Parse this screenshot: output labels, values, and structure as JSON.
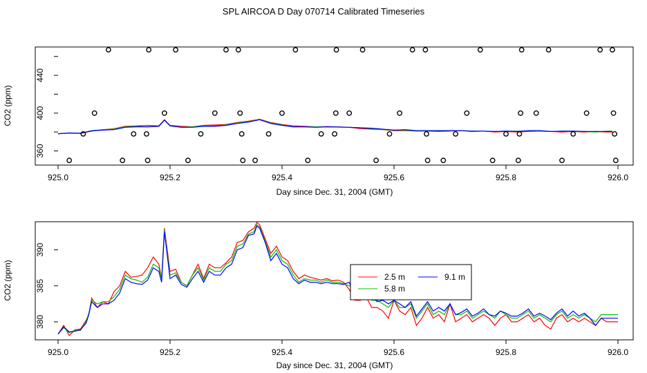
{
  "figure": {
    "title": "SPL AIRCOA D  Day 070714  Calibrated Timeseries"
  },
  "colors": {
    "series_2_5m": "#ff0000",
    "series_5_8m": "#00c000",
    "series_9_1m": "#0000ff",
    "outlier_points": "#000000"
  },
  "chart_data": [
    {
      "type": "line",
      "panel": "top",
      "title": "",
      "xlabel": "Day since Dec. 31, 2004 (GMT)",
      "ylabel": "CO2 (ppm)",
      "xlim": [
        925.0,
        926.0
      ],
      "ylim": [
        345,
        470
      ],
      "x_ticks": [
        "925.0",
        "925.2",
        "925.4",
        "925.6",
        "925.8",
        "926.0"
      ],
      "x_tick_values": [
        925.0,
        925.2,
        925.4,
        925.6,
        925.8,
        926.0
      ],
      "y_ticks": [
        "360",
        "400",
        "440"
      ],
      "y_tick_values": [
        360,
        400,
        440
      ],
      "grid": false,
      "x": [
        925.0,
        925.02,
        925.04,
        925.06,
        925.08,
        925.1,
        925.12,
        925.14,
        925.16,
        925.18,
        925.19,
        925.2,
        925.22,
        925.24,
        925.26,
        925.28,
        925.3,
        925.32,
        925.34,
        925.36,
        925.38,
        925.4,
        925.42,
        925.44,
        925.46,
        925.48,
        925.5,
        925.52,
        925.54,
        925.56,
        925.58,
        925.6,
        925.62,
        925.64,
        925.66,
        925.68,
        925.7,
        925.72,
        925.74,
        925.76,
        925.78,
        925.8,
        925.82,
        925.84,
        925.86,
        925.88,
        925.9,
        925.92,
        925.94,
        925.96,
        925.98,
        925.99
      ],
      "series": [
        {
          "name": "2.5 m",
          "values": [
            378.2,
            378.8,
            378.5,
            381.0,
            382.5,
            383.5,
            386.0,
            386.5,
            387.0,
            386.5,
            393.0,
            387.0,
            386.0,
            385.5,
            387.0,
            387.5,
            388.0,
            390.0,
            391.5,
            393.5,
            390.0,
            388.0,
            386.5,
            386.0,
            385.5,
            385.8,
            385.5,
            385.0,
            383.5,
            383.0,
            382.5,
            381.5,
            381.5,
            381.0,
            381.0,
            380.5,
            381.0,
            381.5,
            380.5,
            381.0,
            380.0,
            380.5,
            380.0,
            380.5,
            381.0,
            380.5,
            380.0,
            380.5,
            380.0,
            380.5,
            380.0,
            380.0
          ]
        },
        {
          "name": "5.8 m",
          "values": [
            378.2,
            379.0,
            378.8,
            381.5,
            382.5,
            383.0,
            385.5,
            386.0,
            385.5,
            386.0,
            392.5,
            386.5,
            385.0,
            385.5,
            386.5,
            386.5,
            387.5,
            389.5,
            391.0,
            393.0,
            389.5,
            387.5,
            385.5,
            385.5,
            385.5,
            385.5,
            385.3,
            385.0,
            384.5,
            383.5,
            382.5,
            382.0,
            382.0,
            381.0,
            381.5,
            381.0,
            381.5,
            381.5,
            381.0,
            381.0,
            380.5,
            381.0,
            381.0,
            381.0,
            381.5,
            380.5,
            381.0,
            381.0,
            380.5,
            380.0,
            381.0,
            381.0
          ]
        },
        {
          "name": "9.1 m",
          "values": [
            378.2,
            379.0,
            378.8,
            381.2,
            382.0,
            382.5,
            385.0,
            385.5,
            385.5,
            386.0,
            392.5,
            386.5,
            385.0,
            385.0,
            386.0,
            386.0,
            387.0,
            389.0,
            390.5,
            393.0,
            389.0,
            387.0,
            385.5,
            385.5,
            385.0,
            385.5,
            385.3,
            385.0,
            384.5,
            384.0,
            383.0,
            382.0,
            382.5,
            381.5,
            381.5,
            381.5,
            381.5,
            381.5,
            381.0,
            381.0,
            380.5,
            381.0,
            380.5,
            381.5,
            381.5,
            380.5,
            381.0,
            381.0,
            380.5,
            380.5,
            380.5,
            380.5
          ]
        }
      ],
      "outliers": {
        "name": "outlier points",
        "x": [
          925.02,
          925.045,
          925.065,
          925.09,
          925.115,
          925.135,
          925.16,
          925.158,
          925.162,
          925.19,
          925.21,
          925.232,
          925.255,
          925.28,
          925.3,
          925.322,
          925.325,
          925.328,
          925.33,
          925.352,
          925.376,
          925.4,
          925.424,
          925.446,
          925.47,
          925.494,
          925.496,
          925.497,
          925.52,
          925.544,
          925.568,
          925.592,
          925.61,
          925.633,
          925.656,
          925.658,
          925.66,
          925.688,
          925.71,
          925.73,
          925.754,
          925.776,
          925.8,
          925.822,
          925.824,
          925.826,
          925.828,
          925.854,
          925.876,
          925.9,
          925.92,
          925.944,
          925.968,
          925.99,
          925.992,
          925.994,
          925.996
        ],
        "y": [
          350,
          378,
          400,
          467,
          350,
          378,
          350,
          378,
          467,
          400,
          467,
          350,
          378,
          400,
          467,
          467,
          400,
          378,
          350,
          350,
          378,
          400,
          467,
          350,
          378,
          378,
          400,
          467,
          400,
          467,
          350,
          378,
          400,
          467,
          467,
          378,
          350,
          350,
          378,
          400,
          467,
          350,
          378,
          350,
          378,
          400,
          467,
          400,
          467,
          350,
          378,
          400,
          467,
          467,
          400,
          378,
          350
        ]
      }
    },
    {
      "type": "line",
      "panel": "bottom",
      "title": "",
      "xlabel": "Day since Dec. 31, 2004 (GMT)",
      "ylabel": "CO2 (ppm)",
      "xlim": [
        925.0,
        926.0
      ],
      "ylim": [
        377.5,
        393.9
      ],
      "x_ticks": [
        "925.0",
        "925.2",
        "925.4",
        "925.6",
        "925.8",
        "926.0"
      ],
      "x_tick_values": [
        925.0,
        925.2,
        925.4,
        925.6,
        925.8,
        926.0
      ],
      "y_ticks": [
        "380",
        "385",
        "390"
      ],
      "y_tick_values": [
        380,
        385,
        390
      ],
      "grid": false,
      "legend": {
        "location": "center-right",
        "entries": [
          "2.5 m",
          "5.8 m",
          "9.1 m"
        ]
      },
      "x": [
        925.0,
        925.01,
        925.02,
        925.03,
        925.04,
        925.05,
        925.055,
        925.06,
        925.07,
        925.08,
        925.09,
        925.1,
        925.11,
        925.12,
        925.13,
        925.14,
        925.15,
        925.16,
        925.17,
        925.18,
        925.185,
        925.19,
        925.2,
        925.21,
        925.22,
        925.23,
        925.24,
        925.25,
        925.26,
        925.27,
        925.28,
        925.29,
        925.3,
        925.31,
        925.32,
        925.33,
        925.34,
        925.35,
        925.355,
        925.36,
        925.37,
        925.38,
        925.39,
        925.4,
        925.41,
        925.42,
        925.43,
        925.44,
        925.45,
        925.46,
        925.47,
        925.48,
        925.49,
        925.5,
        925.51,
        925.52,
        925.53,
        925.54,
        925.55,
        925.56,
        925.57,
        925.58,
        925.59,
        925.6,
        925.61,
        925.62,
        925.63,
        925.64,
        925.65,
        925.66,
        925.67,
        925.68,
        925.69,
        925.7,
        925.71,
        925.72,
        925.73,
        925.74,
        925.75,
        925.76,
        925.77,
        925.78,
        925.79,
        925.8,
        925.81,
        925.82,
        925.83,
        925.84,
        925.85,
        925.86,
        925.87,
        925.88,
        925.89,
        925.9,
        925.91,
        925.92,
        925.93,
        925.94,
        925.95,
        925.96,
        925.97,
        925.98,
        925.99,
        926.0
      ],
      "series": [
        {
          "name": "2.5 m",
          "values": [
            378.3,
            379.5,
            378.1,
            378.9,
            379.0,
            380.2,
            381.0,
            383.3,
            382.0,
            382.8,
            382.5,
            384.2,
            385.0,
            387.0,
            386.2,
            386.3,
            386.5,
            387.5,
            389.0,
            388.0,
            386.0,
            393.0,
            387.0,
            387.3,
            385.5,
            385.0,
            386.5,
            388.0,
            386.0,
            388.0,
            387.5,
            387.5,
            388.2,
            389.0,
            391.0,
            391.3,
            392.5,
            393.0,
            393.8,
            393.5,
            391.5,
            389.5,
            390.5,
            389.0,
            388.5,
            387.0,
            386.0,
            386.5,
            386.2,
            386.0,
            385.8,
            386.0,
            385.7,
            385.8,
            385.5,
            384.5,
            383.0,
            383.0,
            383.5,
            382.0,
            382.0,
            381.5,
            380.5,
            383.0,
            381.5,
            381.0,
            382.0,
            379.5,
            380.5,
            382.0,
            380.5,
            381.0,
            380.0,
            382.5,
            380.0,
            380.5,
            381.0,
            380.0,
            380.5,
            381.0,
            380.5,
            379.5,
            380.5,
            381.0,
            380.0,
            380.0,
            380.5,
            381.0,
            380.0,
            380.5,
            379.5,
            379.0,
            380.5,
            381.0,
            380.0,
            380.5,
            380.0,
            380.5,
            380.0,
            379.5,
            380.5,
            380.0,
            380.0,
            380.0
          ]
        },
        {
          "name": "5.8 m",
          "values": [
            378.3,
            379.2,
            378.5,
            378.8,
            378.8,
            380.0,
            381.2,
            383.0,
            382.5,
            382.8,
            382.8,
            383.5,
            384.5,
            386.5,
            386.0,
            385.8,
            385.5,
            386.2,
            388.0,
            387.5,
            386.0,
            392.8,
            386.5,
            386.8,
            385.5,
            385.0,
            386.5,
            387.5,
            385.8,
            387.5,
            387.0,
            387.0,
            388.0,
            388.5,
            390.5,
            390.8,
            392.2,
            392.5,
            393.5,
            393.2,
            391.2,
            389.0,
            390.0,
            388.5,
            388.0,
            386.5,
            385.5,
            386.0,
            385.8,
            385.8,
            385.5,
            385.8,
            385.5,
            385.5,
            385.3,
            385.0,
            384.5,
            384.8,
            383.8,
            383.0,
            383.0,
            382.5,
            382.0,
            383.0,
            382.0,
            382.0,
            382.5,
            380.5,
            381.5,
            382.5,
            381.0,
            381.5,
            381.0,
            382.5,
            381.0,
            381.0,
            381.5,
            380.5,
            381.0,
            381.5,
            381.0,
            380.5,
            381.5,
            381.0,
            380.5,
            380.5,
            381.0,
            381.5,
            380.5,
            381.0,
            380.5,
            380.0,
            381.0,
            381.5,
            380.5,
            381.0,
            380.5,
            381.0,
            380.5,
            380.0,
            381.0,
            381.0,
            381.0,
            381.0
          ]
        },
        {
          "name": "9.1 m",
          "values": [
            378.3,
            379.3,
            378.6,
            378.7,
            378.9,
            379.8,
            381.0,
            382.8,
            382.0,
            382.5,
            382.5,
            383.0,
            384.0,
            386.0,
            385.5,
            385.3,
            385.2,
            385.8,
            387.5,
            387.0,
            385.5,
            392.5,
            386.0,
            386.5,
            385.2,
            384.8,
            386.0,
            387.0,
            385.5,
            387.0,
            386.5,
            386.5,
            387.5,
            388.0,
            390.0,
            390.3,
            392.0,
            392.2,
            393.3,
            393.0,
            391.0,
            388.5,
            389.5,
            388.0,
            387.5,
            386.0,
            385.3,
            385.8,
            385.5,
            385.5,
            385.3,
            385.5,
            385.3,
            385.3,
            385.2,
            385.5,
            383.5,
            384.5,
            383.5,
            383.5,
            382.8,
            383.0,
            382.5,
            383.0,
            382.5,
            382.0,
            382.8,
            380.8,
            381.8,
            382.8,
            381.5,
            382.0,
            381.5,
            382.5,
            381.0,
            381.3,
            381.8,
            380.8,
            381.2,
            381.8,
            381.0,
            380.8,
            381.5,
            381.2,
            380.8,
            380.8,
            381.2,
            381.8,
            380.8,
            381.2,
            380.8,
            380.3,
            381.2,
            381.8,
            380.8,
            381.5,
            380.8,
            381.2,
            380.5,
            379.5,
            380.5,
            380.5,
            380.5,
            380.5
          ]
        }
      ]
    }
  ]
}
